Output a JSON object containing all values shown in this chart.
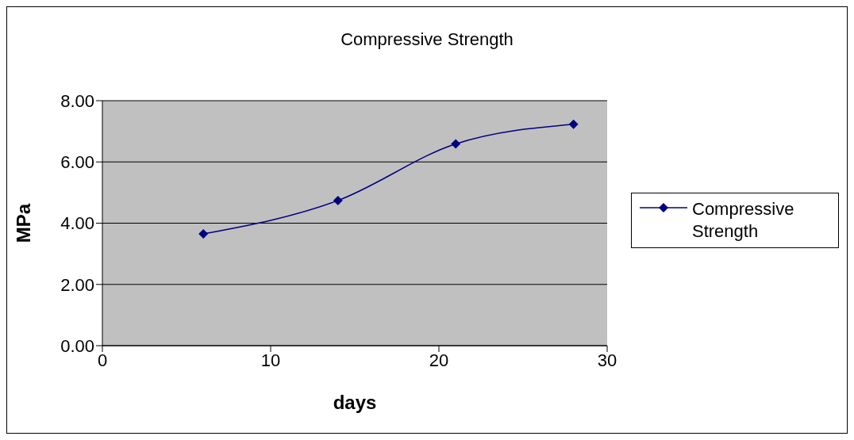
{
  "chart_data": {
    "type": "line",
    "title": "Compressive Strength",
    "xlabel": "days",
    "ylabel": "MPa",
    "x": [
      6,
      14,
      21,
      28
    ],
    "series": [
      {
        "name": "Compressive Strength",
        "color": "#000080",
        "values": [
          3.65,
          4.74,
          6.59,
          7.23
        ]
      }
    ],
    "xlim": [
      0,
      30
    ],
    "xticks": [
      0,
      10,
      20,
      30
    ],
    "ylim": [
      0,
      8
    ],
    "yticks": [
      {
        "value": 0,
        "label": "0.00"
      },
      {
        "value": 2,
        "label": "2.00"
      },
      {
        "value": 4,
        "label": "4.00"
      },
      {
        "value": 6,
        "label": "6.00"
      },
      {
        "value": 8,
        "label": "8.00"
      }
    ],
    "grid": "y",
    "legend": "right",
    "marker": "diamond",
    "line_style": "solid"
  }
}
